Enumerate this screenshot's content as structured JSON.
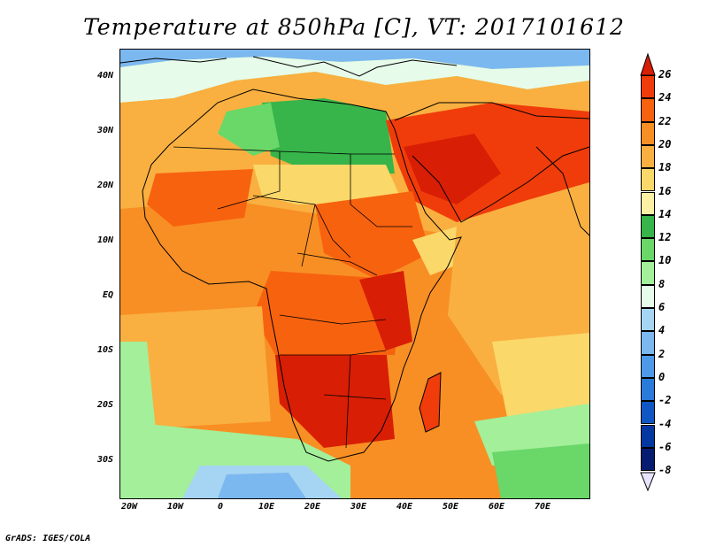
{
  "title": "Temperature at 850hPa [C], VT: 2017101612",
  "credit": "GrADS: IGES/COLA",
  "y_axis_labels": [
    "40N",
    "30N",
    "20N",
    "10N",
    "EQ",
    "10S",
    "20S",
    "30S"
  ],
  "x_axis_labels": [
    "20W",
    "10W",
    "0",
    "10E",
    "20E",
    "30E",
    "40E",
    "50E",
    "60E",
    "70E"
  ],
  "colorbar": {
    "labels": [
      "26",
      "24",
      "22",
      "20",
      "18",
      "16",
      "14",
      "12",
      "10",
      "8",
      "6",
      "4",
      "2",
      "0",
      "-2",
      "-4",
      "-6",
      "-8"
    ],
    "colors": [
      "#d81e05",
      "#f03c0a",
      "#f7620f",
      "#f88f24",
      "#f9b040",
      "#fad86a",
      "#fcf0a4",
      "#37b44a",
      "#6ad769",
      "#a3ef9a",
      "#e6fbe9",
      "#a6d4f3",
      "#7cb8f0",
      "#4f9ae8",
      "#2a7ad9",
      "#1057c4",
      "#0537a0",
      "#061c70"
    ]
  },
  "map": {
    "projection": "lat-lon",
    "lon_range": [
      -22,
      80
    ],
    "lat_range": [
      -37,
      45
    ],
    "palette": {
      "hot": "#d81e05",
      "warm": "#f03c0a",
      "orange": "#f88f24",
      "light_orange": "#f9b040",
      "yellow": "#fad86a",
      "pale": "#fcf0a4",
      "green": "#37b44a",
      "light_green": "#6ad769",
      "pale_green": "#a3ef9a",
      "pale_cyan": "#e6fbe9",
      "light_blue": "#a6d4f3",
      "blue": "#4f9ae8"
    }
  }
}
